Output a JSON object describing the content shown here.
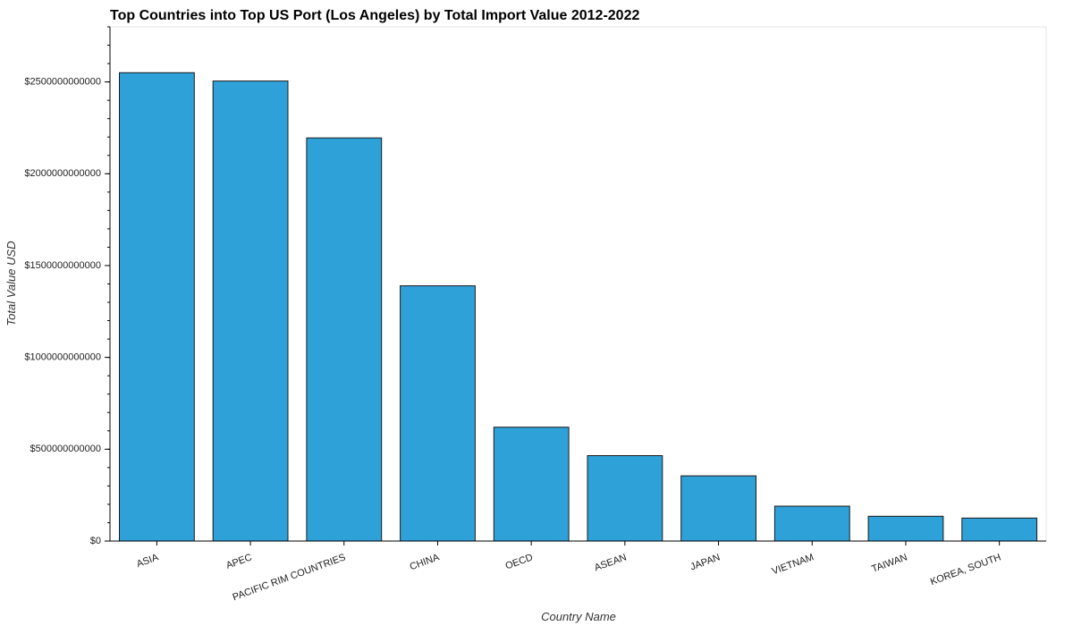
{
  "chart_data": {
    "type": "bar",
    "title": "Top Countries into Top US Port (Los Angeles) by Total Import Value 2012-2022",
    "xlabel": "Country Name",
    "ylabel": "Total Value USD",
    "categories": [
      "ASIA",
      "APEC",
      "PACIFIC RIM COUNTRIES",
      "CHINA",
      "OECD",
      "ASEAN",
      "JAPAN",
      "VIETNAM",
      "TAIWAN",
      "KOREA, SOUTH"
    ],
    "values": [
      2550000000000,
      2505000000000,
      2195000000000,
      1390000000000,
      620000000000,
      465000000000,
      355000000000,
      190000000000,
      135000000000,
      125000000000
    ],
    "ylim": [
      0,
      2800000000000
    ],
    "yticks": [
      0,
      500000000000,
      1000000000000,
      1500000000000,
      2000000000000,
      2500000000000
    ],
    "ytick_labels": [
      "$0",
      "$500000000000",
      "$1000000000000",
      "$1500000000000",
      "$2000000000000",
      "$2500000000000"
    ],
    "bar_color": "#2ea1d9",
    "bar_edge_color": "#1a1a1a",
    "grid": false
  }
}
